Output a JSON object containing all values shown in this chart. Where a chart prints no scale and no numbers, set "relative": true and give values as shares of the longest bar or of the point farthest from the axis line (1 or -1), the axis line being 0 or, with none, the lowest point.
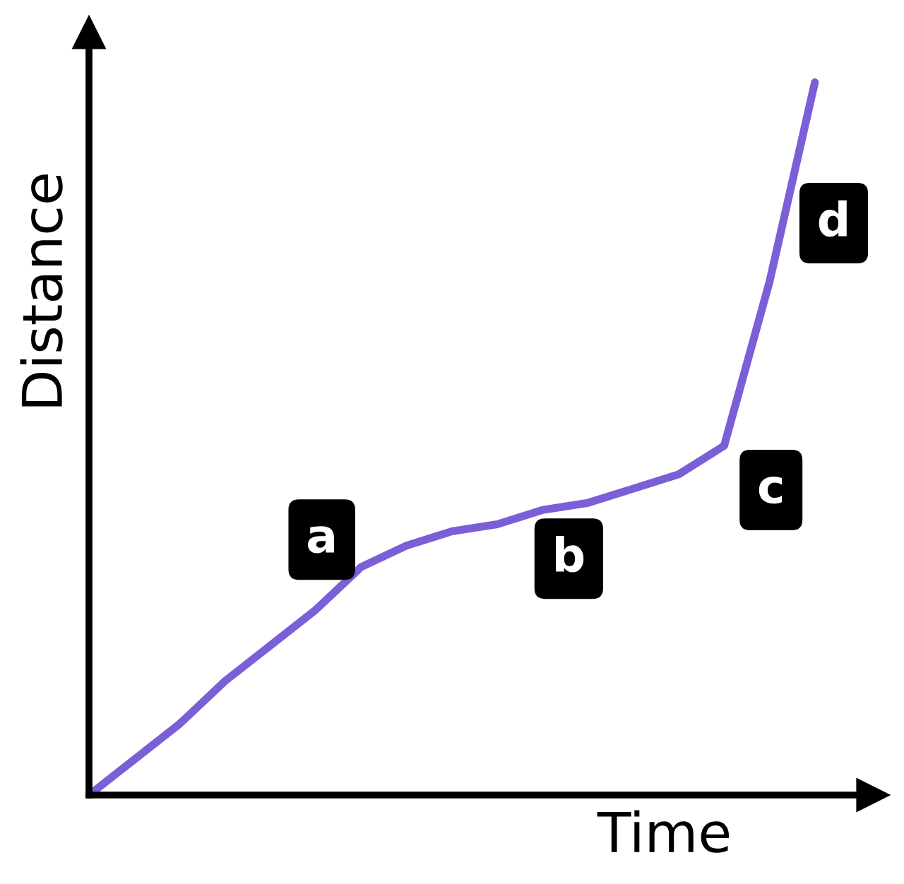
{
  "chart_data": {
    "type": "line",
    "relative": true,
    "xlabel": "Time",
    "ylabel": "Distance",
    "color": "#7b5fd6",
    "categories": [
      null,
      null,
      null,
      null,
      null,
      null,
      null,
      null,
      null,
      null,
      null,
      null,
      null,
      null,
      null,
      null,
      null
    ],
    "values": [
      0,
      0.05,
      0.1,
      0.16,
      0.21,
      0.26,
      0.32,
      0.35,
      0.37,
      0.38,
      0.4,
      0.41,
      0.43,
      0.45,
      0.49,
      0.72,
      1
    ],
    "annotations": [
      "a",
      "b",
      "c",
      "d"
    ],
    "marker": "none",
    "line_style": "solid"
  }
}
